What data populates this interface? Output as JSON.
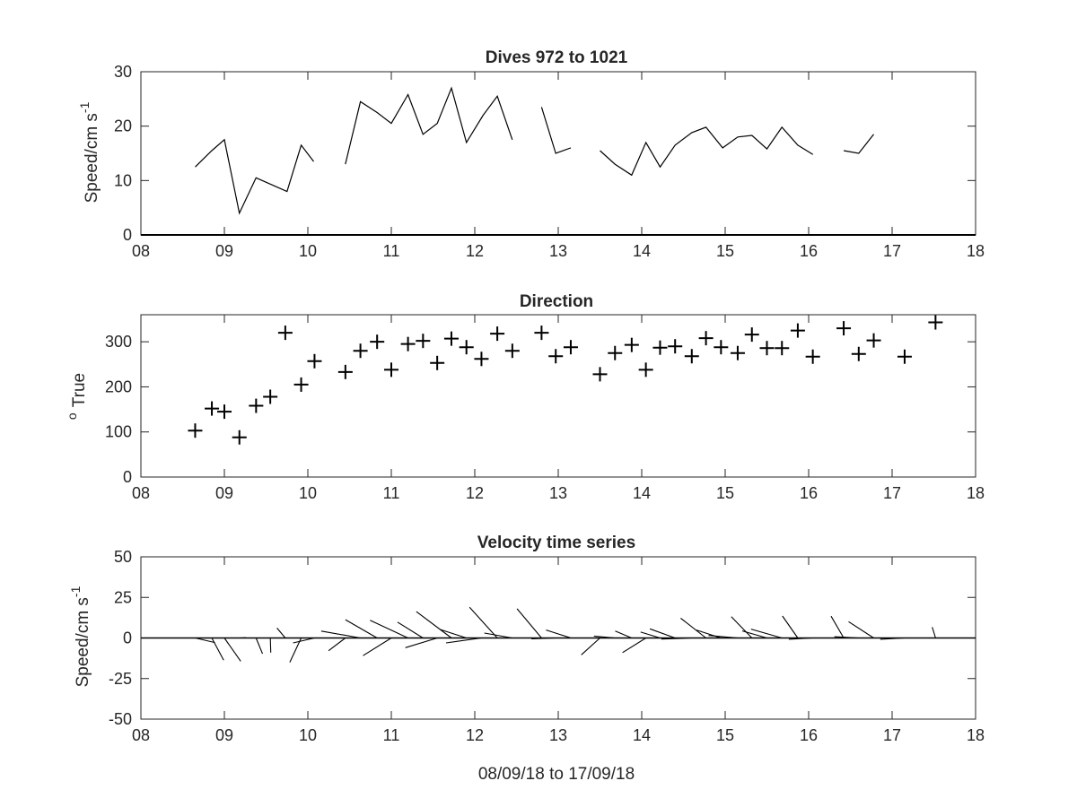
{
  "chart_data": [
    {
      "type": "line",
      "title": "Dives 972 to 1021",
      "ylabel_main": "Speed/cm s",
      "ylabel_sup": "-1",
      "xlim": [
        8,
        18
      ],
      "ylim": [
        0,
        30
      ],
      "xtick_values": [
        8,
        9,
        10,
        11,
        12,
        13,
        14,
        15,
        16,
        17,
        18
      ],
      "xtick_labels": [
        "08",
        "09",
        "10",
        "11",
        "12",
        "13",
        "14",
        "15",
        "16",
        "17",
        "18"
      ],
      "ytick_values": [
        0,
        10,
        20,
        30
      ],
      "ytick_labels": [
        "0",
        "10",
        "20",
        "30"
      ],
      "segments": [
        [
          [
            8.65,
            12.5
          ],
          [
            8.85,
            15.5
          ],
          [
            9.0,
            17.5
          ],
          [
            9.18,
            4.0
          ],
          [
            9.38,
            10.5
          ],
          [
            9.75,
            8.0
          ],
          [
            9.92,
            16.5
          ],
          [
            10.07,
            13.5
          ]
        ],
        [
          [
            10.45,
            13.0
          ],
          [
            10.63,
            24.5
          ],
          [
            10.83,
            22.5
          ],
          [
            11.0,
            20.5
          ],
          [
            11.2,
            25.8
          ],
          [
            11.38,
            18.5
          ],
          [
            11.55,
            20.5
          ],
          [
            11.72,
            27.0
          ],
          [
            11.9,
            17.0
          ],
          [
            12.1,
            22.0
          ],
          [
            12.27,
            25.5
          ],
          [
            12.45,
            17.5
          ]
        ],
        [
          [
            12.8,
            23.5
          ],
          [
            12.97,
            15.0
          ],
          [
            13.15,
            16.0
          ]
        ],
        [
          [
            13.5,
            15.5
          ],
          [
            13.68,
            13.0
          ],
          [
            13.88,
            11.0
          ],
          [
            14.05,
            17.0
          ],
          [
            14.22,
            12.5
          ],
          [
            14.4,
            16.5
          ],
          [
            14.6,
            18.8
          ],
          [
            14.77,
            19.8
          ],
          [
            14.97,
            16.0
          ],
          [
            15.15,
            18.0
          ],
          [
            15.32,
            18.3
          ],
          [
            15.5,
            15.8
          ],
          [
            15.68,
            19.8
          ],
          [
            15.87,
            16.5
          ],
          [
            16.05,
            14.8
          ]
        ],
        [
          [
            16.42,
            15.5
          ],
          [
            16.6,
            15.0
          ],
          [
            16.78,
            18.5
          ]
        ]
      ]
    },
    {
      "type": "scatter",
      "title": "Direction",
      "ylabel_main": "True",
      "ylabel_sup": "o",
      "xlim": [
        8,
        18
      ],
      "ylim": [
        0,
        360
      ],
      "xtick_values": [
        8,
        9,
        10,
        11,
        12,
        13,
        14,
        15,
        16,
        17,
        18
      ],
      "xtick_labels": [
        "08",
        "09",
        "10",
        "11",
        "12",
        "13",
        "14",
        "15",
        "16",
        "17",
        "18"
      ],
      "ytick_values": [
        0,
        100,
        200,
        300
      ],
      "ytick_labels": [
        "0",
        "100",
        "200",
        "300"
      ],
      "points": [
        [
          8.65,
          103
        ],
        [
          8.85,
          152
        ],
        [
          9.0,
          145
        ],
        [
          9.18,
          88
        ],
        [
          9.38,
          158
        ],
        [
          9.55,
          178
        ],
        [
          9.73,
          320
        ],
        [
          9.92,
          205
        ],
        [
          10.08,
          257
        ],
        [
          10.45,
          233
        ],
        [
          10.63,
          280
        ],
        [
          10.83,
          300
        ],
        [
          11.0,
          238
        ],
        [
          11.2,
          295
        ],
        [
          11.38,
          302
        ],
        [
          11.55,
          253
        ],
        [
          11.72,
          307
        ],
        [
          11.9,
          288
        ],
        [
          12.08,
          262
        ],
        [
          12.27,
          318
        ],
        [
          12.45,
          280
        ],
        [
          12.8,
          320
        ],
        [
          12.97,
          268
        ],
        [
          13.15,
          288
        ],
        [
          13.5,
          228
        ],
        [
          13.68,
          275
        ],
        [
          13.88,
          293
        ],
        [
          14.05,
          238
        ],
        [
          14.22,
          287
        ],
        [
          14.4,
          290
        ],
        [
          14.6,
          268
        ],
        [
          14.77,
          308
        ],
        [
          14.95,
          288
        ],
        [
          15.15,
          275
        ],
        [
          15.32,
          316
        ],
        [
          15.5,
          286
        ],
        [
          15.68,
          286
        ],
        [
          15.87,
          325
        ],
        [
          16.05,
          267
        ],
        [
          16.42,
          330
        ],
        [
          16.6,
          273
        ],
        [
          16.78,
          303
        ],
        [
          17.15,
          267
        ],
        [
          17.52,
          343
        ]
      ]
    },
    {
      "type": "quiver",
      "title": "Velocity time series",
      "xlabel": "08/09/18 to 17/09/18",
      "ylabel_main": "Speed/cm s",
      "ylabel_sup": "-1",
      "xlim": [
        8,
        18
      ],
      "ylim": [
        -50,
        50
      ],
      "xtick_values": [
        8,
        9,
        10,
        11,
        12,
        13,
        14,
        15,
        16,
        17,
        18
      ],
      "xtick_labels": [
        "08",
        "09",
        "10",
        "11",
        "12",
        "13",
        "14",
        "15",
        "16",
        "17",
        "18"
      ],
      "ytick_values": [
        -50,
        -25,
        0,
        25,
        50
      ],
      "ytick_labels": [
        "-50",
        "-25",
        "0",
        "25",
        "50"
      ],
      "baseline": 0,
      "time_span_days": 10,
      "vectors": [
        [
          8.65,
          103,
          12.5
        ],
        [
          8.85,
          152,
          15.5
        ],
        [
          9.0,
          145,
          17.5
        ],
        [
          9.18,
          88,
          4.0
        ],
        [
          9.38,
          158,
          10.5
        ],
        [
          9.55,
          178,
          9.0
        ],
        [
          9.73,
          320,
          8.0
        ],
        [
          9.92,
          205,
          16.5
        ],
        [
          10.08,
          257,
          13.5
        ],
        [
          10.45,
          233,
          13.0
        ],
        [
          10.63,
          280,
          24.5
        ],
        [
          10.83,
          300,
          22.5
        ],
        [
          11.0,
          238,
          20.5
        ],
        [
          11.2,
          295,
          25.8
        ],
        [
          11.38,
          302,
          18.5
        ],
        [
          11.55,
          253,
          20.5
        ],
        [
          11.72,
          307,
          27.0
        ],
        [
          11.9,
          288,
          17.0
        ],
        [
          12.08,
          262,
          22.0
        ],
        [
          12.27,
          318,
          25.5
        ],
        [
          12.45,
          280,
          17.5
        ],
        [
          12.8,
          320,
          23.5
        ],
        [
          12.97,
          268,
          15.0
        ],
        [
          13.15,
          288,
          16.0
        ],
        [
          13.5,
          228,
          15.5
        ],
        [
          13.68,
          275,
          13.0
        ],
        [
          13.88,
          293,
          11.0
        ],
        [
          14.05,
          238,
          17.0
        ],
        [
          14.22,
          287,
          12.5
        ],
        [
          14.4,
          290,
          16.5
        ],
        [
          14.6,
          268,
          18.8
        ],
        [
          14.77,
          308,
          19.8
        ],
        [
          14.95,
          288,
          16.0
        ],
        [
          15.15,
          275,
          18.0
        ],
        [
          15.32,
          316,
          18.3
        ],
        [
          15.5,
          286,
          15.8
        ],
        [
          15.68,
          286,
          19.8
        ],
        [
          15.87,
          325,
          16.5
        ],
        [
          16.05,
          267,
          14.8
        ],
        [
          16.42,
          330,
          15.5
        ],
        [
          16.6,
          273,
          15.0
        ],
        [
          16.78,
          303,
          18.5
        ],
        [
          17.15,
          267,
          15.0
        ],
        [
          17.52,
          343,
          7.0
        ]
      ]
    }
  ]
}
